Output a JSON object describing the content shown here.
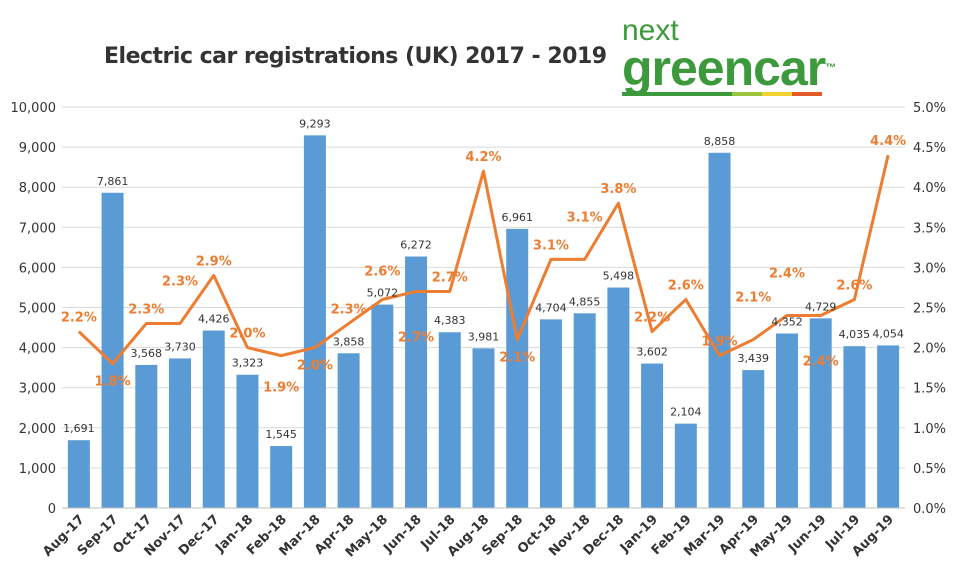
{
  "chart_data": {
    "type": "bar+line",
    "title": "Electric car registrations (UK) 2017 - 2019",
    "categories": [
      "Aug-17",
      "Sep-17",
      "Oct-17",
      "Nov-17",
      "Dec-17",
      "Jan-18",
      "Feb-18",
      "Mar-18",
      "Apr-18",
      "May-18",
      "Jun-18",
      "Jul-18",
      "Aug-18",
      "Sep-18",
      "Oct-18",
      "Nov-18",
      "Dec-18",
      "Jan-19",
      "Feb-19",
      "Mar-19",
      "Apr-19",
      "May-19",
      "Jun-19",
      "Jul-19",
      "Aug-19"
    ],
    "series": [
      {
        "type": "bar",
        "axis": "left",
        "color": "#5b9bd5",
        "values": [
          1691,
          7861,
          3568,
          3730,
          4426,
          3323,
          1545,
          9293,
          3858,
          5072,
          6272,
          4383,
          3981,
          6961,
          4704,
          4855,
          5498,
          3602,
          2104,
          8858,
          3439,
          4352,
          4729,
          4035,
          4054
        ]
      },
      {
        "type": "line",
        "axis": "right",
        "color": "#ed7d31",
        "values": [
          2.2,
          1.8,
          2.3,
          2.3,
          2.9,
          2.0,
          1.9,
          2.0,
          2.3,
          2.6,
          2.7,
          2.7,
          4.2,
          2.1,
          3.1,
          3.1,
          3.8,
          2.2,
          2.6,
          1.9,
          2.1,
          2.4,
          2.4,
          2.6,
          4.4
        ]
      }
    ],
    "y_left": {
      "range": [
        0,
        10000
      ],
      "ticks": [
        "0",
        "1,000",
        "2,000",
        "3,000",
        "4,000",
        "5,000",
        "6,000",
        "7,000",
        "8,000",
        "9,000",
        "10,000"
      ]
    },
    "y_right": {
      "range": [
        0,
        5
      ],
      "ticks": [
        "0.0%",
        "0.5%",
        "1.0%",
        "1.5%",
        "2.0%",
        "2.5%",
        "3.0%",
        "3.5%",
        "4.0%",
        "4.5%",
        "5.0%"
      ]
    },
    "grid": true,
    "legend": "none"
  },
  "logo": {
    "line1": "next",
    "line2": "greencar",
    "tm": "™"
  }
}
